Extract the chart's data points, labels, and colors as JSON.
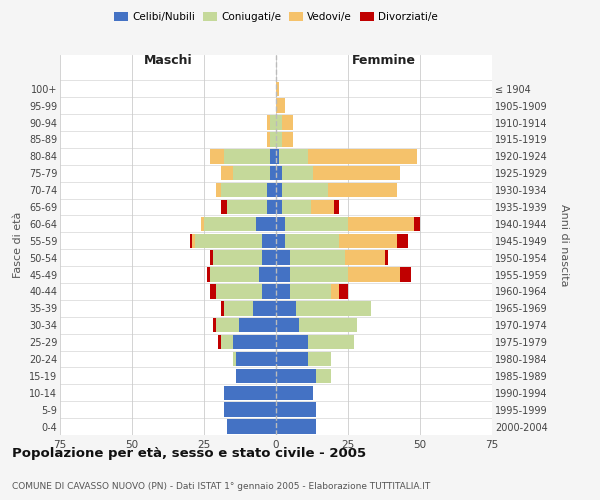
{
  "age_groups": [
    "0-4",
    "5-9",
    "10-14",
    "15-19",
    "20-24",
    "25-29",
    "30-34",
    "35-39",
    "40-44",
    "45-49",
    "50-54",
    "55-59",
    "60-64",
    "65-69",
    "70-74",
    "75-79",
    "80-84",
    "85-89",
    "90-94",
    "95-99",
    "100+"
  ],
  "birth_years": [
    "2000-2004",
    "1995-1999",
    "1990-1994",
    "1985-1989",
    "1980-1984",
    "1975-1979",
    "1970-1974",
    "1965-1969",
    "1960-1964",
    "1955-1959",
    "1950-1954",
    "1945-1949",
    "1940-1944",
    "1935-1939",
    "1930-1934",
    "1925-1929",
    "1920-1924",
    "1915-1919",
    "1910-1914",
    "1905-1909",
    "≤ 1904"
  ],
  "male": {
    "celibi": [
      17,
      18,
      18,
      14,
      14,
      15,
      13,
      8,
      5,
      6,
      5,
      5,
      7,
      3,
      3,
      2,
      2,
      0,
      0,
      0,
      0
    ],
    "coniugati": [
      0,
      0,
      0,
      0,
      1,
      4,
      8,
      10,
      16,
      17,
      17,
      23,
      18,
      14,
      16,
      13,
      16,
      2,
      2,
      0,
      0
    ],
    "vedovi": [
      0,
      0,
      0,
      0,
      0,
      0,
      0,
      0,
      0,
      0,
      0,
      1,
      1,
      0,
      2,
      4,
      5,
      1,
      1,
      0,
      0
    ],
    "divorziati": [
      0,
      0,
      0,
      0,
      0,
      1,
      1,
      1,
      2,
      1,
      1,
      1,
      0,
      2,
      0,
      0,
      0,
      0,
      0,
      0,
      0
    ]
  },
  "female": {
    "nubili": [
      14,
      14,
      13,
      14,
      11,
      11,
      8,
      7,
      5,
      5,
      5,
      3,
      3,
      2,
      2,
      2,
      1,
      0,
      0,
      0,
      0
    ],
    "coniugate": [
      0,
      0,
      0,
      5,
      8,
      16,
      20,
      26,
      14,
      20,
      19,
      19,
      22,
      10,
      16,
      11,
      10,
      2,
      2,
      0,
      0
    ],
    "vedove": [
      0,
      0,
      0,
      0,
      0,
      0,
      0,
      0,
      3,
      18,
      14,
      20,
      23,
      8,
      24,
      30,
      38,
      4,
      4,
      3,
      1
    ],
    "divorziate": [
      0,
      0,
      0,
      0,
      0,
      0,
      0,
      0,
      3,
      4,
      1,
      4,
      2,
      2,
      0,
      0,
      0,
      0,
      0,
      0,
      0
    ]
  },
  "colors": {
    "celibi_nubili": "#4472c4",
    "coniugati": "#c5d99a",
    "vedovi": "#f5c26b",
    "divorziati": "#c00000"
  },
  "xlim": 75,
  "title": "Popolazione per età, sesso e stato civile - 2005",
  "subtitle": "COMUNE DI CAVASSO NUOVO (PN) - Dati ISTAT 1° gennaio 2005 - Elaborazione TUTTITALIA.IT",
  "bg_color": "#f5f5f5",
  "plot_bg": "#ffffff",
  "grid_color": "#cccccc"
}
